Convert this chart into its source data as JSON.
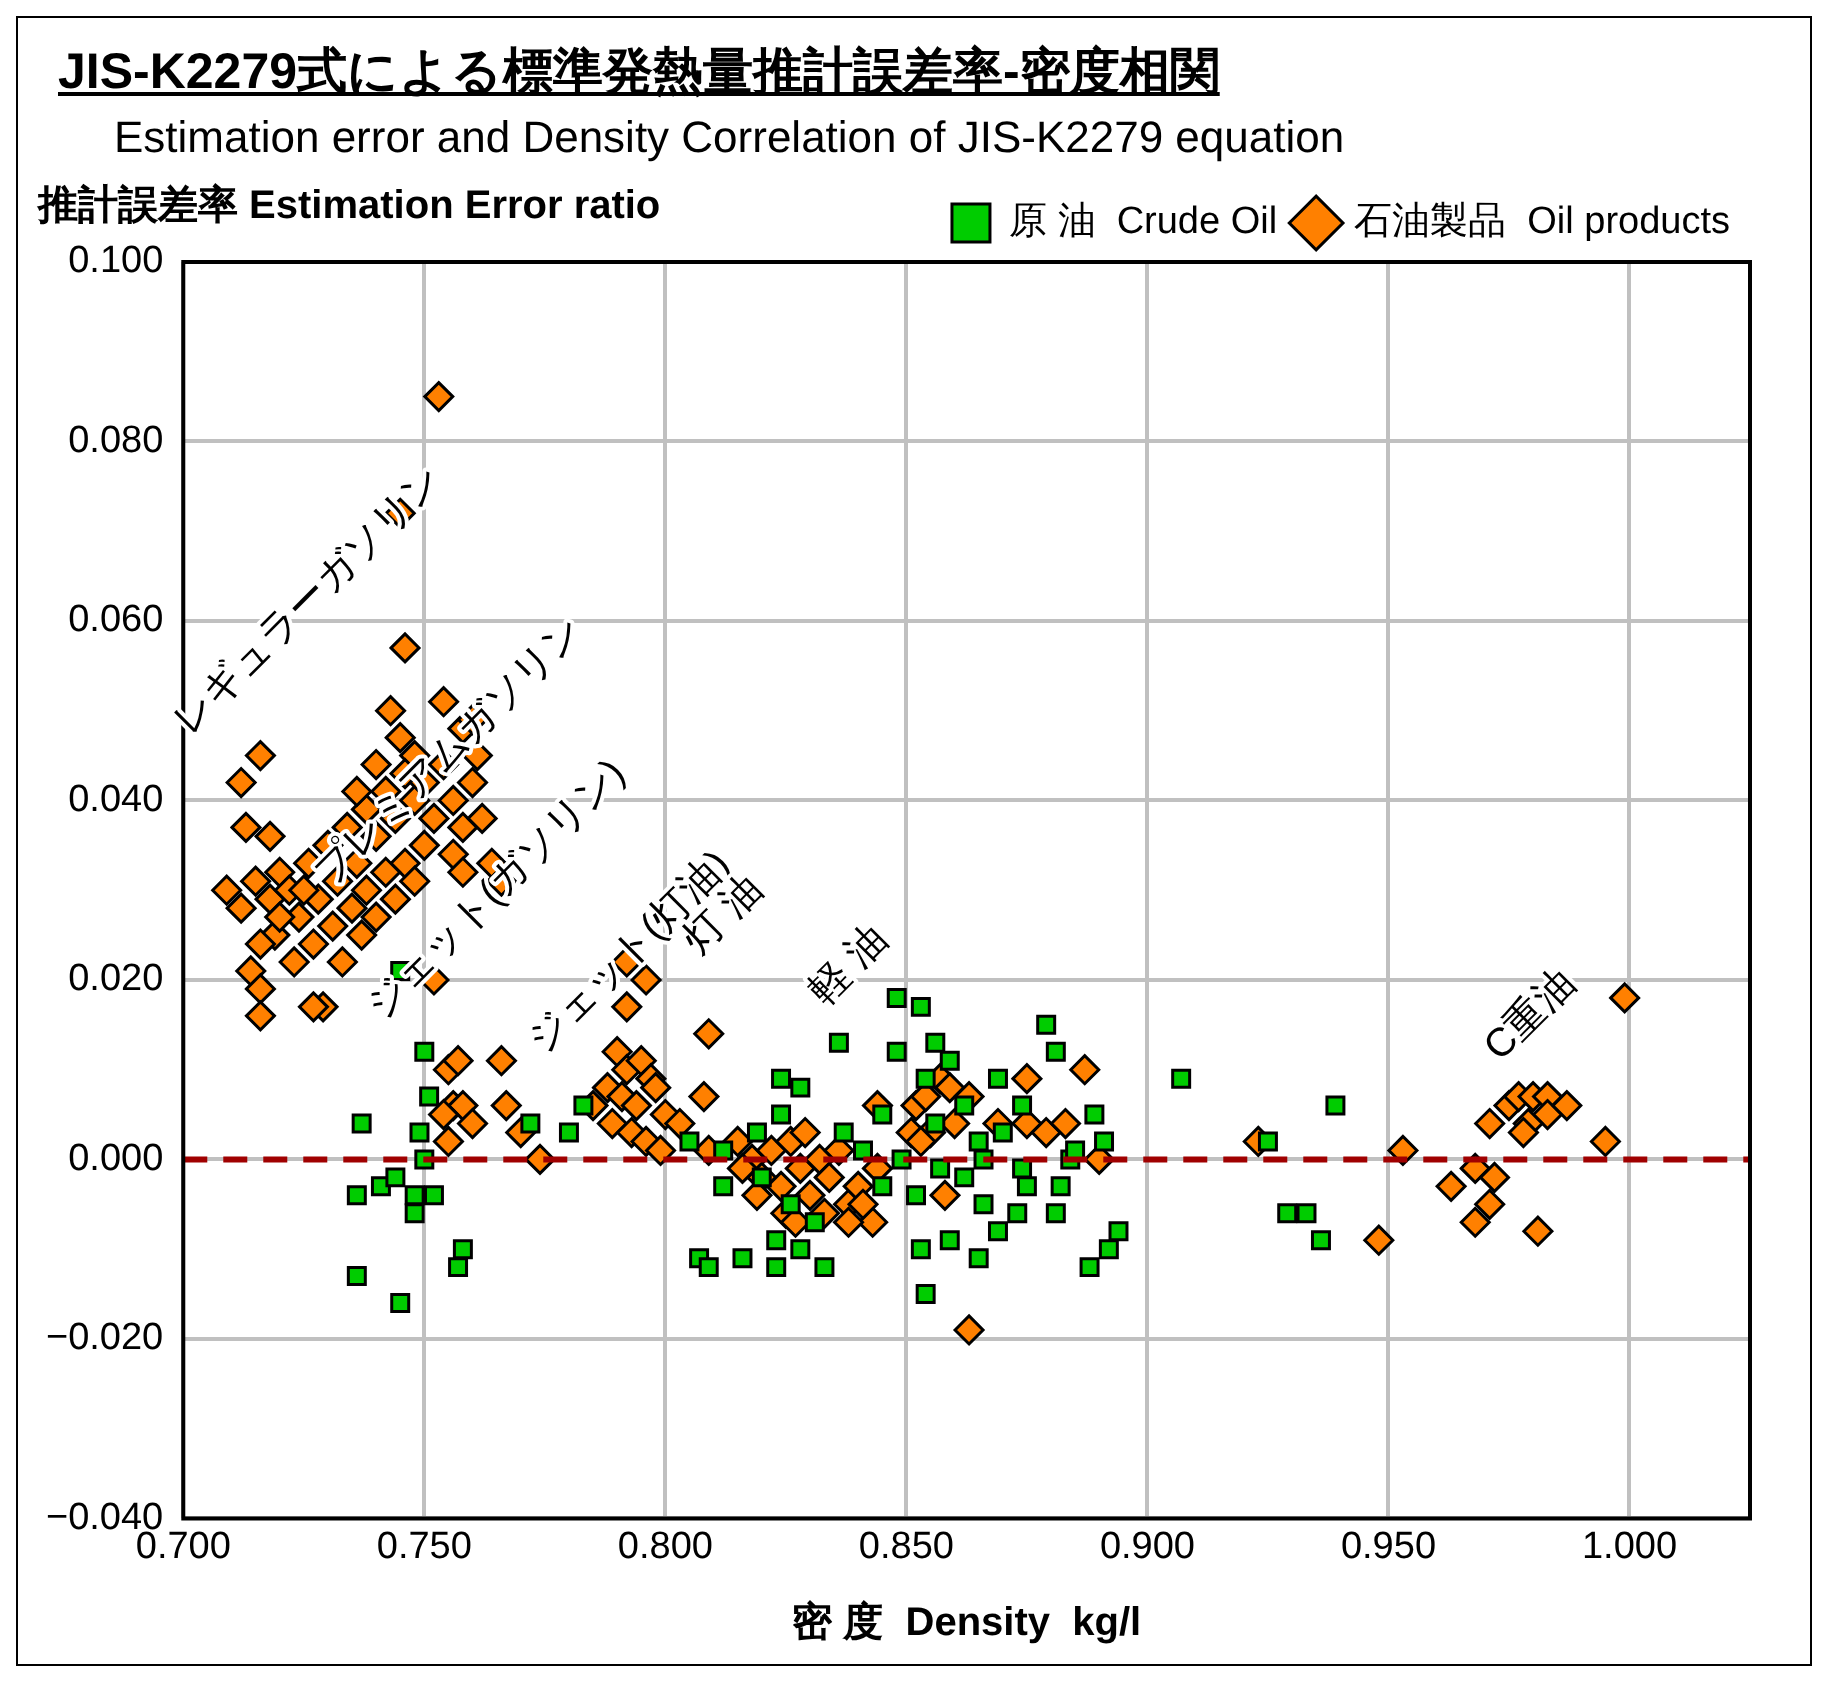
{
  "chart_data": {
    "type": "scatter",
    "title": "JIS-K2279式による標準発熱量推計誤差率-密度相関",
    "subtitle": "Estimation error and Density Correlation of JIS-K2279 equation",
    "xlabel": "密 度  Density  kg/l",
    "ylabel": "推計誤差率  Estimation Error ratio",
    "xlim": [
      0.7,
      1.025
    ],
    "ylim": [
      -0.04,
      0.1
    ],
    "xticks": [
      {
        "value": 0.7,
        "label": "0.700"
      },
      {
        "value": 0.75,
        "label": "0.750"
      },
      {
        "value": 0.8,
        "label": "0.800"
      },
      {
        "value": 0.85,
        "label": "0.850"
      },
      {
        "value": 0.9,
        "label": "0.900"
      },
      {
        "value": 0.95,
        "label": "0.950"
      },
      {
        "value": 1.0,
        "label": "1.000"
      }
    ],
    "yticks": [
      {
        "value": -0.04,
        "label": "−0.040"
      },
      {
        "value": -0.02,
        "label": "−0.020"
      },
      {
        "value": 0,
        "label": "0.000"
      },
      {
        "value": 0.02,
        "label": "0.020"
      },
      {
        "value": 0.04,
        "label": "0.040"
      },
      {
        "value": 0.06,
        "label": "0.060"
      },
      {
        "value": 0.08,
        "label": "0.080"
      },
      {
        "value": 0.1,
        "label": "0.100"
      }
    ],
    "grid": true,
    "legend": "top right",
    "ref_lines": [
      {
        "axis": "y",
        "value": 0,
        "color": "#a00000",
        "line_style": "dashed"
      }
    ],
    "annotations": [
      "レギュラーガソリン",
      "プレミアムガソリン",
      "ジェット(ガソリン)",
      "ジェット(灯油)",
      "灯 油",
      "軽 油",
      "C重油"
    ],
    "series": [
      {
        "name": "原 油  Crude Oil",
        "color": "#00cc00",
        "marker": "square",
        "x": [
          0.75,
          0.751,
          0.749,
          0.737,
          0.75,
          0.736,
          0.741,
          0.744,
          0.748,
          0.752,
          0.748,
          0.736,
          0.745,
          0.758,
          0.757,
          0.772,
          0.78,
          0.783,
          0.745,
          0.805,
          0.807,
          0.848,
          0.853,
          0.836,
          0.848,
          0.856,
          0.879,
          0.881,
          0.824,
          0.828,
          0.812,
          0.809,
          0.816,
          0.823,
          0.833,
          0.823,
          0.828,
          0.854,
          0.853,
          0.865,
          0.859,
          0.869,
          0.873,
          0.881,
          0.875,
          0.866,
          0.852,
          0.845,
          0.837,
          0.824,
          0.819,
          0.812,
          0.845,
          0.854,
          0.859,
          0.869,
          0.874,
          0.889,
          0.891,
          0.884,
          0.874,
          0.866,
          0.862,
          0.857,
          0.849,
          0.885,
          0.894,
          0.892,
          0.888,
          0.907,
          0.865,
          0.882,
          0.841,
          0.939,
          0.925,
          0.929,
          0.933,
          0.936,
          0.826,
          0.831,
          0.82,
          0.856,
          0.862,
          0.87
        ],
        "values": [
          0.012,
          0.007,
          0.003,
          0.004,
          0.0,
          -0.004,
          -0.003,
          -0.002,
          -0.004,
          -0.004,
          -0.006,
          -0.013,
          -0.016,
          -0.01,
          -0.012,
          0.004,
          0.003,
          0.006,
          0.021,
          0.002,
          -0.011,
          0.018,
          0.017,
          0.013,
          0.012,
          0.013,
          0.015,
          0.012,
          0.009,
          0.008,
          -0.003,
          -0.012,
          -0.011,
          -0.012,
          -0.012,
          -0.009,
          -0.01,
          -0.015,
          -0.01,
          -0.011,
          -0.009,
          -0.008,
          -0.006,
          -0.006,
          -0.003,
          -0.005,
          -0.004,
          -0.003,
          0.003,
          0.005,
          0.003,
          0.001,
          0.005,
          0.009,
          0.011,
          0.009,
          0.006,
          0.005,
          0.002,
          0.0,
          -0.001,
          0.0,
          -0.002,
          -0.001,
          0.0,
          0.001,
          -0.008,
          -0.01,
          -0.012,
          0.009,
          0.002,
          -0.003,
          0.001,
          0.006,
          0.002,
          -0.006,
          -0.006,
          -0.009,
          -0.005,
          -0.007,
          -0.002,
          0.004,
          0.006,
          0.003
        ]
      },
      {
        "name": "石油製品  Oil products",
        "color": "#ff8000",
        "marker": "diamond",
        "x": [
          0.753,
          0.745,
          0.746,
          0.754,
          0.743,
          0.758,
          0.76,
          0.745,
          0.748,
          0.712,
          0.716,
          0.713,
          0.718,
          0.709,
          0.712,
          0.715,
          0.718,
          0.72,
          0.722,
          0.724,
          0.726,
          0.728,
          0.73,
          0.732,
          0.734,
          0.736,
          0.738,
          0.74,
          0.742,
          0.744,
          0.746,
          0.748,
          0.75,
          0.752,
          0.754,
          0.756,
          0.758,
          0.76,
          0.762,
          0.75,
          0.746,
          0.742,
          0.738,
          0.735,
          0.731,
          0.727,
          0.723,
          0.719,
          0.716,
          0.714,
          0.716,
          0.716,
          0.733,
          0.737,
          0.74,
          0.744,
          0.748,
          0.756,
          0.764,
          0.766,
          0.752,
          0.72,
          0.725,
          0.729,
          0.758,
          0.761,
          0.74,
          0.736,
          0.755,
          0.757,
          0.766,
          0.756,
          0.758,
          0.76,
          0.754,
          0.755,
          0.767,
          0.77,
          0.774,
          0.792,
          0.796,
          0.792,
          0.727,
          0.79,
          0.792,
          0.795,
          0.797,
          0.788,
          0.791,
          0.794,
          0.798,
          0.8,
          0.789,
          0.793,
          0.796,
          0.785,
          0.803,
          0.799,
          0.809,
          0.808,
          0.809,
          0.815,
          0.818,
          0.82,
          0.822,
          0.824,
          0.826,
          0.828,
          0.83,
          0.832,
          0.834,
          0.836,
          0.838,
          0.825,
          0.819,
          0.829,
          0.833,
          0.84,
          0.816,
          0.827,
          0.844,
          0.852,
          0.854,
          0.857,
          0.859,
          0.863,
          0.86,
          0.855,
          0.851,
          0.853,
          0.869,
          0.875,
          0.875,
          0.879,
          0.883,
          0.887,
          0.89,
          0.858,
          0.844,
          0.843,
          0.838,
          0.841,
          0.863,
          0.923,
          0.953,
          0.948,
          0.968,
          0.972,
          0.963,
          0.971,
          0.968,
          0.981,
          0.971,
          0.975,
          0.977,
          0.98,
          0.983,
          0.983,
          0.979,
          0.978,
          0.987,
          0.995,
          0.999
        ],
        "values": [
          0.085,
          0.072,
          0.057,
          0.051,
          0.05,
          0.048,
          0.049,
          0.047,
          0.045,
          0.042,
          0.045,
          0.037,
          0.036,
          0.03,
          0.028,
          0.031,
          0.029,
          0.032,
          0.03,
          0.027,
          0.033,
          0.029,
          0.035,
          0.031,
          0.037,
          0.033,
          0.039,
          0.036,
          0.041,
          0.038,
          0.043,
          0.04,
          0.042,
          0.038,
          0.044,
          0.04,
          0.037,
          0.042,
          0.038,
          0.035,
          0.033,
          0.032,
          0.03,
          0.028,
          0.026,
          0.024,
          0.022,
          0.025,
          0.024,
          0.021,
          0.019,
          0.016,
          0.022,
          0.025,
          0.027,
          0.029,
          0.031,
          0.034,
          0.033,
          0.031,
          0.02,
          0.027,
          0.03,
          0.017,
          0.032,
          0.045,
          0.044,
          0.041,
          0.01,
          0.011,
          0.011,
          0.006,
          0.006,
          0.004,
          0.005,
          0.002,
          0.006,
          0.003,
          0.0,
          0.022,
          0.02,
          0.017,
          0.017,
          0.012,
          0.01,
          0.011,
          0.009,
          0.008,
          0.007,
          0.006,
          0.008,
          0.005,
          0.004,
          0.003,
          0.002,
          0.006,
          0.004,
          0.001,
          0.014,
          0.007,
          0.001,
          0.002,
          0.0,
          -0.002,
          0.001,
          -0.003,
          0.002,
          -0.001,
          -0.004,
          0.0,
          -0.002,
          0.001,
          -0.005,
          -0.006,
          -0.004,
          0.003,
          -0.006,
          -0.003,
          -0.001,
          -0.007,
          0.006,
          0.006,
          0.007,
          0.009,
          0.008,
          0.007,
          0.004,
          0.003,
          0.003,
          0.002,
          0.004,
          0.009,
          0.004,
          0.003,
          0.004,
          0.01,
          0.0,
          -0.004,
          -0.001,
          -0.007,
          -0.007,
          -0.005,
          -0.019,
          0.002,
          0.001,
          -0.009,
          -0.001,
          -0.002,
          -0.003,
          -0.005,
          -0.007,
          -0.008,
          0.004,
          0.006,
          0.007,
          0.007,
          0.007,
          0.005,
          0.004,
          0.003,
          0.006,
          0.002,
          0.018
        ]
      }
    ]
  }
}
